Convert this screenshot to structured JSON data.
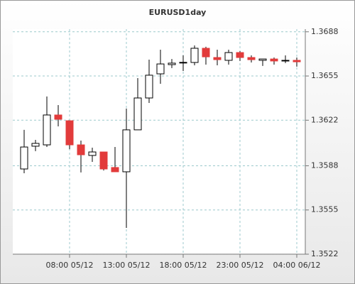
{
  "chart_data": {
    "type": "candlestick",
    "title": "EURUSD1day",
    "categories": [
      null,
      null,
      null,
      null,
      "08:00 05/12",
      null,
      null,
      null,
      null,
      "13:00 05/12",
      null,
      null,
      null,
      null,
      "18:00 05/12",
      null,
      null,
      null,
      null,
      "23:00 05/12",
      null,
      null,
      null,
      null,
      "04:00 06/12"
    ],
    "open": [
      1.35856,
      1.36026,
      1.36036,
      1.36259,
      1.36216,
      1.36036,
      1.35957,
      1.35983,
      1.35867,
      1.35835,
      1.36148,
      1.36386,
      1.36566,
      1.36635,
      1.3665,
      1.36651,
      1.36757,
      1.36688,
      1.36667,
      1.36725,
      1.36688,
      1.36667,
      1.36677,
      1.36667,
      1.36667
    ],
    "high": [
      1.36148,
      1.36073,
      1.36397,
      1.36333,
      1.36216,
      1.36068,
      1.36015,
      1.35983,
      1.3602,
      1.36307,
      1.36534,
      1.36672,
      1.36746,
      1.36677,
      1.36704,
      1.36778,
      1.36768,
      1.36746,
      1.36746,
      1.36736,
      1.36704,
      1.36677,
      1.36688,
      1.36704,
      1.36688
    ],
    "low": [
      1.35824,
      1.35989,
      1.3602,
      1.36174,
      1.36004,
      1.3583,
      1.35909,
      1.35845,
      1.35835,
      1.35416,
      1.36148,
      1.36349,
      1.36492,
      1.36609,
      1.36587,
      1.3663,
      1.36635,
      1.3663,
      1.36635,
      1.36662,
      1.36651,
      1.36625,
      1.36635,
      1.36646,
      1.3662
    ],
    "close": [
      1.3602,
      1.36047,
      1.36259,
      1.36227,
      1.36036,
      1.35962,
      1.35983,
      1.35856,
      1.35835,
      1.36148,
      1.36386,
      1.36556,
      1.3664,
      1.36646,
      1.36652,
      1.36757,
      1.36693,
      1.36672,
      1.36725,
      1.36688,
      1.36672,
      1.36677,
      1.36662,
      1.36667,
      1.36656
    ],
    "up_color": "#ffffff",
    "down_color": "#e23b3b",
    "ylim": [
      1.3522,
      1.369
    ],
    "yticks": [
      1.3522,
      1.3555,
      1.3588,
      1.3622,
      1.3655,
      1.3688
    ],
    "grid": true
  }
}
